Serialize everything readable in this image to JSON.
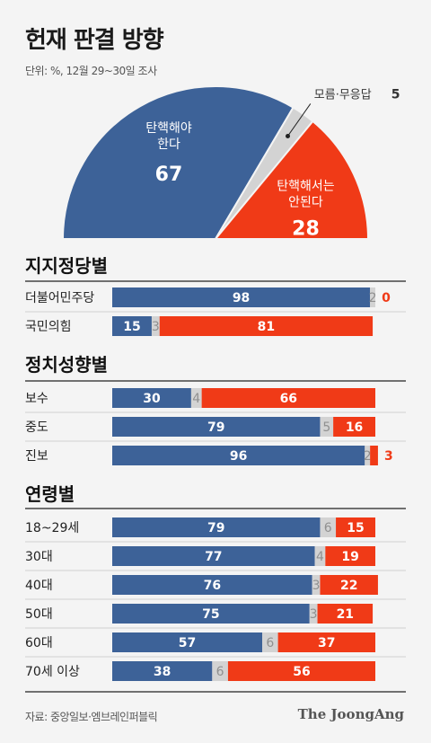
{
  "header": {
    "title": "헌재 판결 방향",
    "unit": "단위: %, 12월 29~30일 조사"
  },
  "footer": {
    "source": "자료: 중앙일보·엠브레인퍼블릭",
    "brand": "The JoongAng"
  },
  "colors": {
    "impeach": "#3d6298",
    "neutral": "#d3d3d3",
    "reject": "#f03a17",
    "neutral_text": "#909090"
  },
  "chart_data": [
    {
      "type": "pie",
      "shape": "semicircle",
      "slices": [
        {
          "label_lines": [
            "탄핵해야",
            "한다"
          ],
          "value": 67
        },
        {
          "label_lines": [
            "모름·무응답"
          ],
          "value": 5
        },
        {
          "label_lines": [
            "탄핵해서는",
            "안된다"
          ],
          "value": 28
        }
      ]
    },
    {
      "type": "bar",
      "orientation": "horizontal",
      "stacked": true,
      "groups": [
        {
          "title": "지지정당별",
          "rows": [
            {
              "category": "더불어민주당",
              "values": [
                98,
                2,
                0
              ]
            },
            {
              "category": "국민의힘",
              "values": [
                15,
                3,
                81
              ]
            }
          ]
        },
        {
          "title": "정치성향별",
          "rows": [
            {
              "category": "보수",
              "values": [
                30,
                4,
                66
              ]
            },
            {
              "category": "중도",
              "values": [
                79,
                5,
                16
              ]
            },
            {
              "category": "진보",
              "values": [
                96,
                2,
                3
              ]
            }
          ]
        },
        {
          "title": "연령별",
          "rows": [
            {
              "category": "18~29세",
              "values": [
                79,
                6,
                15
              ]
            },
            {
              "category": "30대",
              "values": [
                77,
                4,
                19
              ]
            },
            {
              "category": "40대",
              "values": [
                76,
                3,
                22
              ]
            },
            {
              "category": "50대",
              "values": [
                75,
                3,
                21
              ]
            },
            {
              "category": "60대",
              "values": [
                57,
                6,
                37
              ]
            },
            {
              "category": "70세 이상",
              "values": [
                38,
                6,
                56
              ]
            }
          ]
        }
      ]
    }
  ]
}
